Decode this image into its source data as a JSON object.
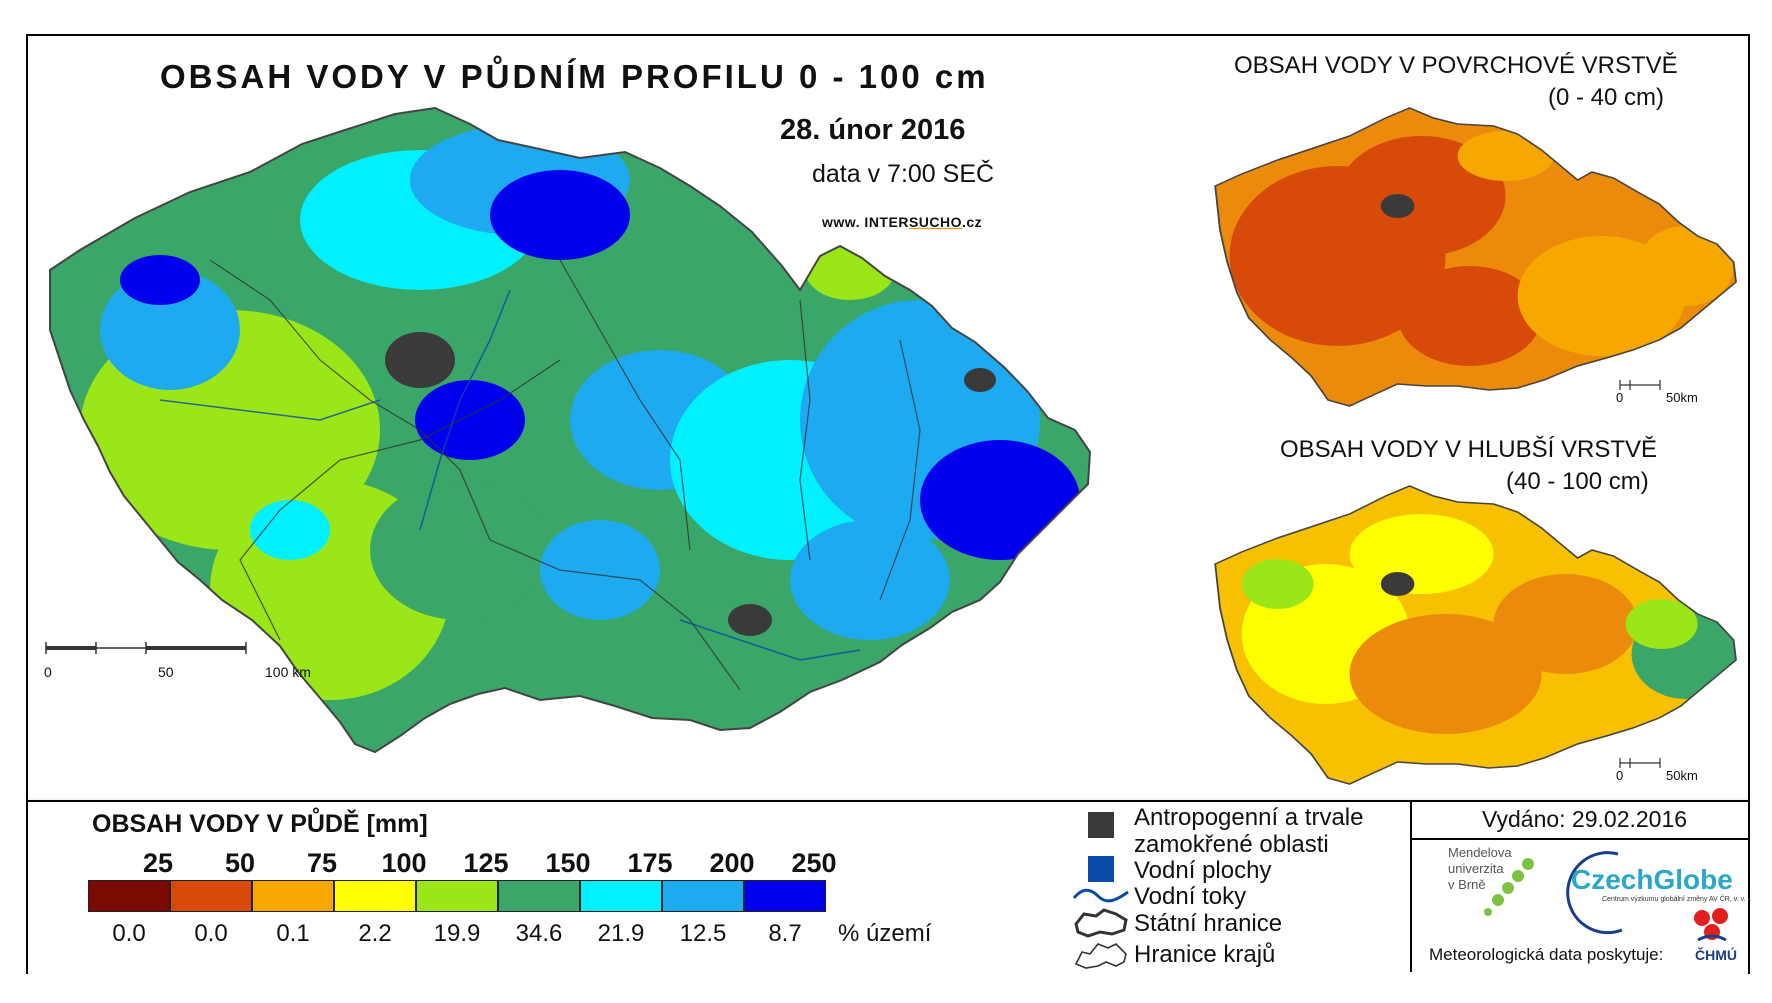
{
  "main_map": {
    "title": "OBSAH VODY V PŮDNÍM PROFILU 0 - 100 cm",
    "date": "28. únor 2016",
    "time": "data v 7:00 SEČ",
    "website_prefix": "www. INTER",
    "website_highlight": "SUCHO",
    "website_suffix": ".cz",
    "scale": {
      "t0": "0",
      "t50": "50",
      "t100": "100 km"
    }
  },
  "inset_surface": {
    "title": "OBSAH VODY V POVRCHOVÉ VRSTVĚ",
    "subtitle": "(0 - 40 cm)",
    "scale": {
      "t0": "0",
      "t50": "50km"
    }
  },
  "inset_deep": {
    "title": "OBSAH VODY V HLUBŠÍ VRSTVĚ",
    "subtitle": "(40 - 100 cm)",
    "scale": {
      "t0": "0",
      "t50": "50km"
    }
  },
  "legend": {
    "title": "OBSAH VODY V PŮDĚ [mm]",
    "breaks": [
      "25",
      "50",
      "75",
      "100",
      "125",
      "150",
      "175",
      "200",
      "250"
    ],
    "colors": [
      "#7a0a00",
      "#d84a0a",
      "#f7a800",
      "#ffff00",
      "#9be619",
      "#3aa667",
      "#00f0ff",
      "#1eaaf0",
      "#0000ee"
    ],
    "percentages": [
      "0.0",
      "0.0",
      "0.1",
      "2.2",
      "19.9",
      "34.6",
      "21.9",
      "12.5",
      "8.7"
    ],
    "percent_unit": "% území"
  },
  "symbols": {
    "anthropogenic": "Antropogenní a trvale zamokřené oblasti",
    "anthropogenic_line1": "Antropogenní a trvale",
    "anthropogenic_line2": "zamokřené oblasti",
    "water_bodies": "Vodní plochy",
    "rivers": "Vodní toky",
    "state_border": "Státní hranice",
    "region_border": "Hranice krajů",
    "anthropogenic_color": "#3a3a3a",
    "water_color": "#0a4aa8",
    "river_color": "#0a4aa8"
  },
  "credits": {
    "issued": "Vydáno: 29.02.2016",
    "mendel": "Mendelova\nuniverzita\nv Brně",
    "czechglobe": "CzechGlobe",
    "czechglobe_sub": "Centrum výzkumu globální změny AV ČR, v. v. i.",
    "meteo": "Meteorologická data poskytuje:",
    "chmu": "ČHMÚ"
  }
}
